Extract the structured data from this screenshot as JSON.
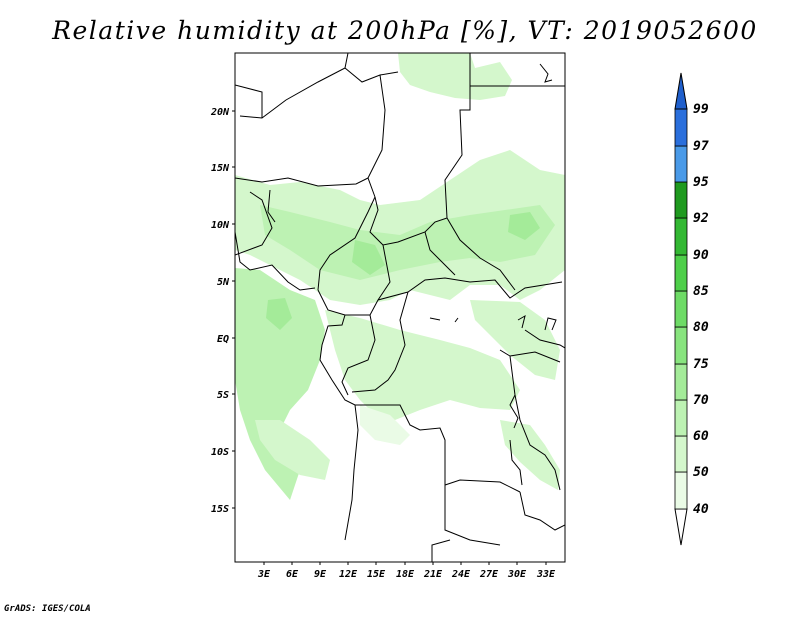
{
  "title": "Relative humidity at 200hPa [%], VT: 2019052600",
  "footer": "GrADS: IGES/COLA",
  "map": {
    "lat_labels": [
      "20N",
      "15N",
      "10N",
      "5N",
      "EQ",
      "5S",
      "10S",
      "15S"
    ],
    "lon_labels": [
      "3E",
      "6E",
      "9E",
      "12E",
      "15E",
      "18E",
      "21E",
      "24E",
      "27E",
      "30E",
      "33E"
    ]
  },
  "colorbar": {
    "levels": [
      "40",
      "50",
      "60",
      "70",
      "75",
      "80",
      "85",
      "90",
      "92",
      "95",
      "97",
      "99"
    ],
    "colors": [
      "#eafbe6",
      "#d4f7cc",
      "#bdf2b3",
      "#a4eb99",
      "#88e47e",
      "#6edb66",
      "#4ecf4a",
      "#33b833",
      "#1f9a1f",
      "#0c820c",
      "#4a9ae8",
      "#2a6fdc",
      "#1f5fcc"
    ]
  }
}
